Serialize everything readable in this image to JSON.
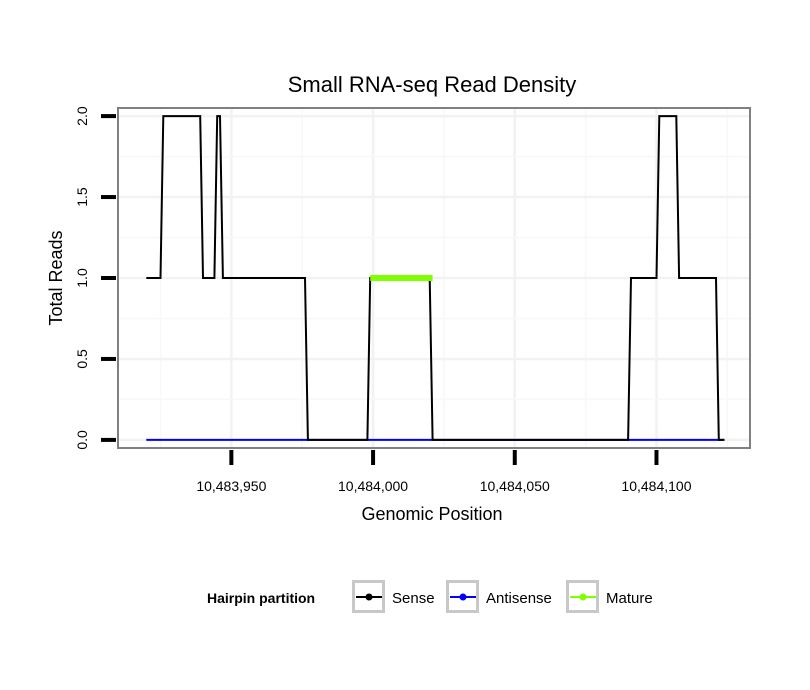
{
  "chart_data": {
    "type": "line",
    "title": "Small RNA-seq Read Density",
    "xlabel": "Genomic Position",
    "ylabel": "Total Reads",
    "xlim": [
      10483910,
      10484133
    ],
    "ylim": [
      -0.05,
      2.05
    ],
    "xticks": [
      10483950,
      10484000,
      10484050,
      10484100
    ],
    "xtick_labels": [
      "10,483,950",
      "10,484,000",
      "10,484,050",
      "10,484,100"
    ],
    "yticks": [
      0.0,
      0.5,
      1.0,
      1.5,
      2.0
    ],
    "ytick_labels": [
      "0.0",
      "0.5",
      "1.0",
      "1.5",
      "2.0"
    ],
    "grid": true,
    "legend": {
      "title": "Hairpin partition",
      "position": "bottom",
      "entries": [
        "Sense",
        "Antisense",
        "Mature"
      ]
    },
    "series": [
      {
        "name": "Sense",
        "color": "#000000",
        "x": [
          10483920,
          10483925,
          10483926,
          10483939,
          10483940,
          10483944,
          10483945,
          10483946,
          10483947,
          10483948,
          10483976,
          10483977,
          10483998,
          10483999,
          10484020,
          10484021,
          10484090,
          10484091,
          10484100,
          10484101,
          10484107,
          10484108,
          10484121,
          10484122,
          10484124
        ],
        "y": [
          1,
          1,
          2,
          2,
          1,
          1,
          2,
          2,
          1,
          1,
          1,
          0,
          0,
          1,
          1,
          0,
          0,
          1,
          1,
          2,
          2,
          1,
          1,
          0,
          0
        ]
      },
      {
        "name": "Antisense",
        "color": "#0000ff",
        "x": [
          10483920,
          10484124
        ],
        "y": [
          0,
          0
        ]
      },
      {
        "name": "Mature",
        "color": "#7fff00",
        "x": [
          10483999,
          10484021
        ],
        "y": [
          1,
          1
        ]
      }
    ]
  }
}
